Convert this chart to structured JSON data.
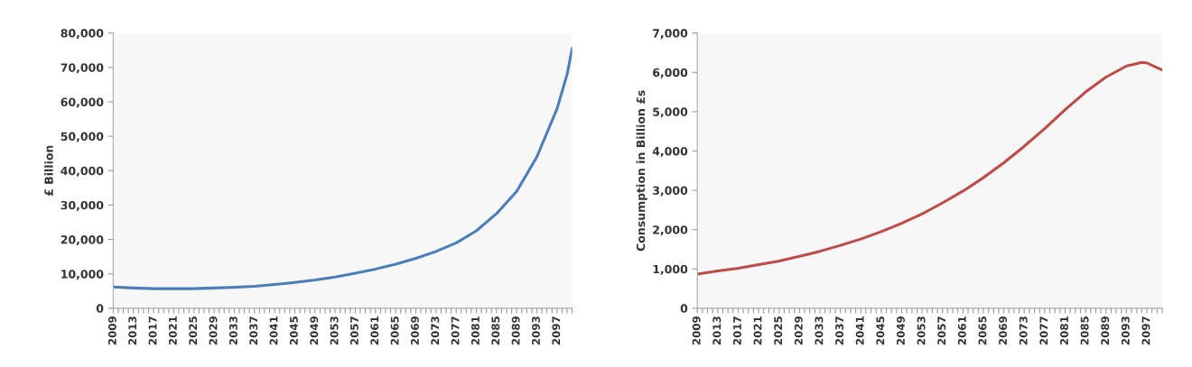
{
  "chart_data": [
    {
      "type": "line",
      "ylabel": "£ Billion",
      "series": [
        {
          "color": "#4a7ebb",
          "x": [
            2009,
            2013,
            2017,
            2021,
            2025,
            2029,
            2033,
            2037,
            2041,
            2045,
            2049,
            2053,
            2057,
            2061,
            2065,
            2069,
            2073,
            2077,
            2081,
            2085,
            2089,
            2093,
            2097,
            2099,
            2100
          ],
          "values": [
            6200,
            5900,
            5700,
            5700,
            5700,
            5900,
            6100,
            6400,
            6900,
            7500,
            8200,
            9100,
            10200,
            11400,
            12800,
            14500,
            16500,
            19000,
            22500,
            27500,
            34000,
            44000,
            58000,
            68000,
            75500
          ]
        }
      ],
      "xlim": [
        2009,
        2100
      ],
      "xticks": [
        2009,
        {
          "value": 2010,
          "label": null
        },
        {
          "value": 2011,
          "label": null
        },
        {
          "value": 2012,
          "label": null
        },
        2013,
        {
          "value": 2014,
          "label": null
        },
        {
          "value": 2015,
          "label": null
        },
        {
          "value": 2016,
          "label": null
        },
        2017,
        {
          "value": 2018,
          "label": null
        },
        {
          "value": 2019,
          "label": null
        },
        {
          "value": 2020,
          "label": null
        },
        2021,
        {
          "value": 2022,
          "label": null
        },
        {
          "value": 2023,
          "label": null
        },
        {
          "value": 2024,
          "label": null
        },
        2025,
        {
          "value": 2026,
          "label": null
        },
        {
          "value": 2027,
          "label": null
        },
        {
          "value": 2028,
          "label": null
        },
        2029,
        {
          "value": 2030,
          "label": null
        },
        {
          "value": 2031,
          "label": null
        },
        {
          "value": 2032,
          "label": null
        },
        2033,
        {
          "value": 2034,
          "label": null
        },
        {
          "value": 2035,
          "label": null
        },
        {
          "value": 2036,
          "label": null
        },
        2037,
        {
          "value": 2038,
          "label": null
        },
        {
          "value": 2039,
          "label": null
        },
        {
          "value": 2040,
          "label": null
        },
        2041,
        {
          "value": 2042,
          "label": null
        },
        {
          "value": 2043,
          "label": null
        },
        {
          "value": 2044,
          "label": null
        },
        2045,
        {
          "value": 2046,
          "label": null
        },
        {
          "value": 2047,
          "label": null
        },
        {
          "value": 2048,
          "label": null
        },
        2049,
        {
          "value": 2050,
          "label": null
        },
        {
          "value": 2051,
          "label": null
        },
        {
          "value": 2052,
          "label": null
        },
        2053,
        {
          "value": 2054,
          "label": null
        },
        {
          "value": 2055,
          "label": null
        },
        {
          "value": 2056,
          "label": null
        },
        2057,
        {
          "value": 2058,
          "label": null
        },
        {
          "value": 2059,
          "label": null
        },
        {
          "value": 2060,
          "label": null
        },
        2061,
        {
          "value": 2062,
          "label": null
        },
        {
          "value": 2063,
          "label": null
        },
        {
          "value": 2064,
          "label": null
        },
        2065,
        {
          "value": 2066,
          "label": null
        },
        {
          "value": 2067,
          "label": null
        },
        {
          "value": 2068,
          "label": null
        },
        2069,
        {
          "value": 2070,
          "label": null
        },
        {
          "value": 2071,
          "label": null
        },
        {
          "value": 2072,
          "label": null
        },
        2073,
        {
          "value": 2074,
          "label": null
        },
        {
          "value": 2075,
          "label": null
        },
        {
          "value": 2076,
          "label": null
        },
        2077,
        {
          "value": 2078,
          "label": null
        },
        {
          "value": 2079,
          "label": null
        },
        {
          "value": 2080,
          "label": null
        },
        2081,
        {
          "value": 2082,
          "label": null
        },
        {
          "value": 2083,
          "label": null
        },
        {
          "value": 2084,
          "label": null
        },
        2085,
        {
          "value": 2086,
          "label": null
        },
        {
          "value": 2087,
          "label": null
        },
        {
          "value": 2088,
          "label": null
        },
        2089,
        {
          "value": 2090,
          "label": null
        },
        {
          "value": 2091,
          "label": null
        },
        {
          "value": 2092,
          "label": null
        },
        2093,
        {
          "value": 2094,
          "label": null
        },
        {
          "value": 2095,
          "label": null
        },
        {
          "value": 2096,
          "label": null
        },
        2097,
        {
          "value": 2098,
          "label": null
        },
        {
          "value": 2099,
          "label": null
        },
        {
          "value": 2100,
          "label": null
        }
      ],
      "ylim": [
        0,
        80000
      ],
      "yticks": [
        0,
        {
          "value": 10000,
          "label": "10,000"
        },
        {
          "value": 20000,
          "label": "20,000"
        },
        {
          "value": 30000,
          "label": "30,000"
        },
        {
          "value": 40000,
          "label": "40,000"
        },
        {
          "value": 50000,
          "label": "50,000"
        },
        {
          "value": 60000,
          "label": "60,000"
        },
        {
          "value": 70000,
          "label": "70,000"
        },
        {
          "value": 80000,
          "label": "80,000"
        }
      ],
      "grid": false,
      "marker": "none",
      "line_style": "solid"
    },
    {
      "type": "line",
      "ylabel": "Consumption in Billion £s",
      "series": [
        {
          "color": "#be4b48",
          "x": [
            2009,
            2013,
            2017,
            2021,
            2025,
            2029,
            2033,
            2037,
            2041,
            2045,
            2049,
            2053,
            2057,
            2061,
            2065,
            2069,
            2073,
            2077,
            2081,
            2085,
            2089,
            2093,
            2096,
            2097,
            2100
          ],
          "values": [
            870,
            950,
            1020,
            1110,
            1200,
            1320,
            1450,
            1600,
            1760,
            1950,
            2160,
            2400,
            2680,
            2980,
            3320,
            3700,
            4120,
            4570,
            5050,
            5500,
            5880,
            6160,
            6250,
            6240,
            6060
          ]
        }
      ],
      "xlim": [
        2009,
        2100
      ],
      "xticks": [
        2009,
        {
          "value": 2010,
          "label": null
        },
        {
          "value": 2011,
          "label": null
        },
        {
          "value": 2012,
          "label": null
        },
        2013,
        {
          "value": 2014,
          "label": null
        },
        {
          "value": 2015,
          "label": null
        },
        {
          "value": 2016,
          "label": null
        },
        2017,
        {
          "value": 2018,
          "label": null
        },
        {
          "value": 2019,
          "label": null
        },
        {
          "value": 2020,
          "label": null
        },
        2021,
        {
          "value": 2022,
          "label": null
        },
        {
          "value": 2023,
          "label": null
        },
        {
          "value": 2024,
          "label": null
        },
        2025,
        {
          "value": 2026,
          "label": null
        },
        {
          "value": 2027,
          "label": null
        },
        {
          "value": 2028,
          "label": null
        },
        2029,
        {
          "value": 2030,
          "label": null
        },
        {
          "value": 2031,
          "label": null
        },
        {
          "value": 2032,
          "label": null
        },
        2033,
        {
          "value": 2034,
          "label": null
        },
        {
          "value": 2035,
          "label": null
        },
        {
          "value": 2036,
          "label": null
        },
        2037,
        {
          "value": 2038,
          "label": null
        },
        {
          "value": 2039,
          "label": null
        },
        {
          "value": 2040,
          "label": null
        },
        2041,
        {
          "value": 2042,
          "label": null
        },
        {
          "value": 2043,
          "label": null
        },
        {
          "value": 2044,
          "label": null
        },
        2045,
        {
          "value": 2046,
          "label": null
        },
        {
          "value": 2047,
          "label": null
        },
        {
          "value": 2048,
          "label": null
        },
        2049,
        {
          "value": 2050,
          "label": null
        },
        {
          "value": 2051,
          "label": null
        },
        {
          "value": 2052,
          "label": null
        },
        2053,
        {
          "value": 2054,
          "label": null
        },
        {
          "value": 2055,
          "label": null
        },
        {
          "value": 2056,
          "label": null
        },
        2057,
        {
          "value": 2058,
          "label": null
        },
        {
          "value": 2059,
          "label": null
        },
        {
          "value": 2060,
          "label": null
        },
        2061,
        {
          "value": 2062,
          "label": null
        },
        {
          "value": 2063,
          "label": null
        },
        {
          "value": 2064,
          "label": null
        },
        2065,
        {
          "value": 2066,
          "label": null
        },
        {
          "value": 2067,
          "label": null
        },
        {
          "value": 2068,
          "label": null
        },
        2069,
        {
          "value": 2070,
          "label": null
        },
        {
          "value": 2071,
          "label": null
        },
        {
          "value": 2072,
          "label": null
        },
        2073,
        {
          "value": 2074,
          "label": null
        },
        {
          "value": 2075,
          "label": null
        },
        {
          "value": 2076,
          "label": null
        },
        2077,
        {
          "value": 2078,
          "label": null
        },
        {
          "value": 2079,
          "label": null
        },
        {
          "value": 2080,
          "label": null
        },
        2081,
        {
          "value": 2082,
          "label": null
        },
        {
          "value": 2083,
          "label": null
        },
        {
          "value": 2084,
          "label": null
        },
        2085,
        {
          "value": 2086,
          "label": null
        },
        {
          "value": 2087,
          "label": null
        },
        {
          "value": 2088,
          "label": null
        },
        2089,
        {
          "value": 2090,
          "label": null
        },
        {
          "value": 2091,
          "label": null
        },
        {
          "value": 2092,
          "label": null
        },
        2093,
        {
          "value": 2094,
          "label": null
        },
        {
          "value": 2095,
          "label": null
        },
        {
          "value": 2096,
          "label": null
        },
        2097,
        {
          "value": 2098,
          "label": null
        },
        {
          "value": 2099,
          "label": null
        },
        {
          "value": 2100,
          "label": null
        }
      ],
      "ylim": [
        0,
        7000
      ],
      "yticks": [
        0,
        {
          "value": 1000,
          "label": "1,000"
        },
        {
          "value": 2000,
          "label": "2,000"
        },
        {
          "value": 3000,
          "label": "3,000"
        },
        {
          "value": 4000,
          "label": "4,000"
        },
        {
          "value": 5000,
          "label": "5,000"
        },
        {
          "value": 6000,
          "label": "6,000"
        },
        {
          "value": 7000,
          "label": "7,000"
        }
      ],
      "grid": false,
      "marker": "none",
      "line_style": "solid"
    }
  ]
}
